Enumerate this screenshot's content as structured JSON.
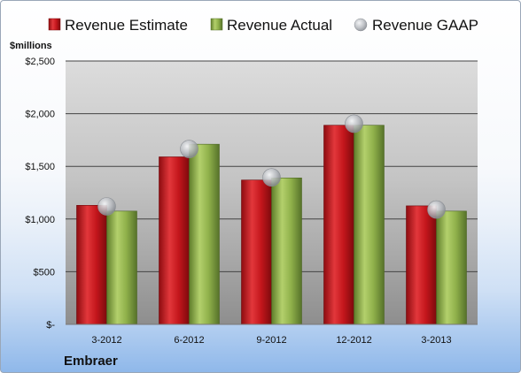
{
  "chart_data": {
    "type": "bar",
    "unit_label": "$millions",
    "company": "Embraer",
    "categories": [
      "3-2012",
      "6-2012",
      "9-2012",
      "12-2012",
      "3-2013"
    ],
    "series": [
      {
        "name": "Revenue Estimate",
        "values": [
          1130,
          1590,
          1370,
          1890,
          1125
        ],
        "color": "#c0151b"
      },
      {
        "name": "Revenue Actual",
        "values": [
          1075,
          1710,
          1390,
          1890,
          1075
        ],
        "color": "#8fb04a"
      },
      {
        "name": "Revenue GAAP",
        "values": [
          1120,
          1665,
          1395,
          1905,
          1090
        ],
        "color": "#a9adb3"
      }
    ],
    "y_ticks": [
      {
        "value": 0,
        "label": "$-"
      },
      {
        "value": 500,
        "label": "$500"
      },
      {
        "value": 1000,
        "label": "$1,000"
      },
      {
        "value": 1500,
        "label": "$1,500"
      },
      {
        "value": 2000,
        "label": "$2,000"
      },
      {
        "value": 2500,
        "label": "$2,500"
      }
    ],
    "ylim": [
      0,
      2500
    ],
    "grid": true,
    "legend_position": "top"
  }
}
